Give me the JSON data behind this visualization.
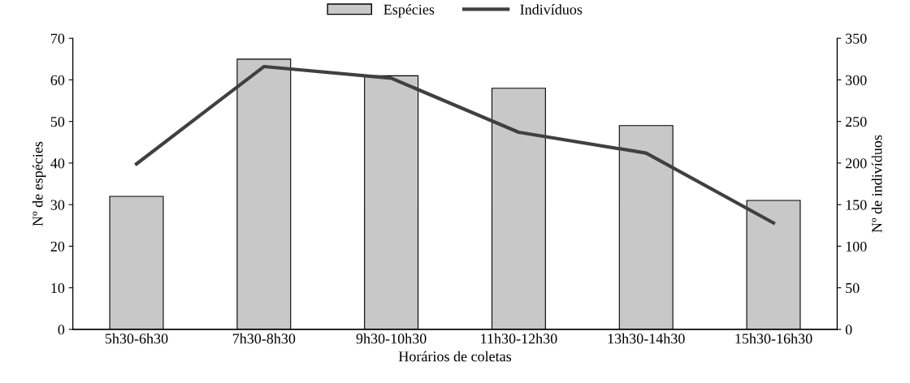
{
  "chart_data": {
    "type": "bar",
    "xlabel": "Horários de coletas",
    "ylabel": "Nº de espécies",
    "y2label": "Nº de indivíduos",
    "categories": [
      "5h30-6h30",
      "7h30-8h30",
      "9h30-10h30",
      "11h30-12h30",
      "13h30-14h30",
      "15h30-16h30"
    ],
    "series": [
      {
        "name": "Espécies",
        "color": "#c8c8c8",
        "values": [
          32,
          65,
          61,
          58,
          49,
          31
        ]
      },
      {
        "name": "Indivíduos",
        "type": "line",
        "axis": "y2",
        "color": "#404040",
        "values": [
          199,
          316,
          302,
          237,
          212,
          128
        ]
      }
    ],
    "ylim": [
      0,
      70
    ],
    "yticks": [
      0,
      10,
      20,
      30,
      40,
      50,
      60,
      70
    ],
    "y2lim": [
      0,
      350
    ],
    "y2ticks": [
      0,
      50,
      100,
      150,
      200,
      250,
      300,
      350
    ],
    "legend": "top",
    "grid": false,
    "marker": "none",
    "line_style": "solid"
  }
}
